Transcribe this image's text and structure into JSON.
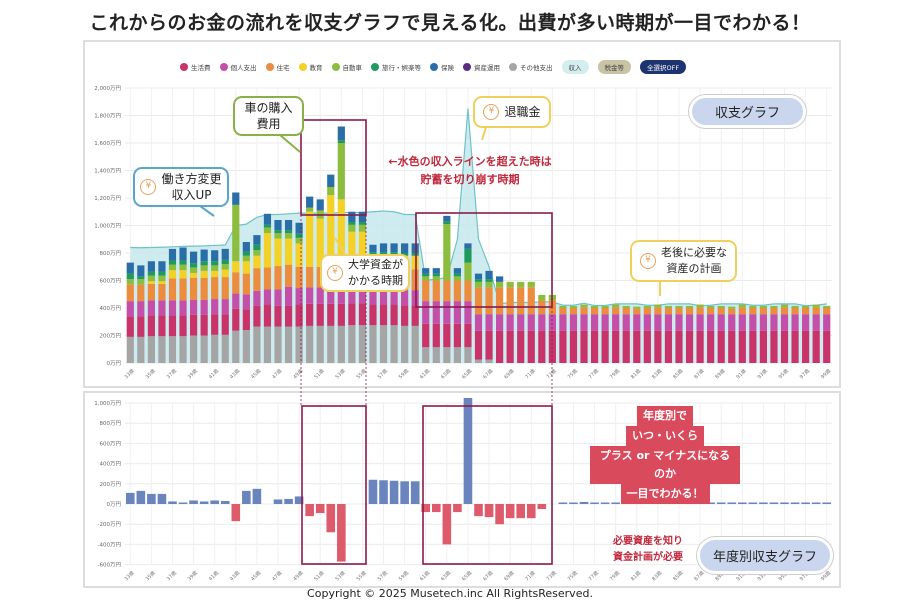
{
  "title": "これからのお金の流れを収支グラフで見える化。出費が多い時期が一目でわかる！",
  "footer": "Copyright © 2025 Musetech.inc All RightsReserved.",
  "legend": {
    "items": [
      {
        "label": "生活費",
        "color": "#c8336a"
      },
      {
        "label": "個人支出",
        "color": "#c44fa8"
      },
      {
        "label": "住宅",
        "color": "#ec8c3e"
      },
      {
        "label": "教育",
        "color": "#f4d126"
      },
      {
        "label": "自動車",
        "color": "#8dbd3f"
      },
      {
        "label": "旅行・娯楽等",
        "color": "#1f9a5c"
      },
      {
        "label": "保険",
        "color": "#2a6ea8"
      },
      {
        "label": "資産運用",
        "color": "#5b2d7e"
      },
      {
        "label": "その他支出",
        "color": "#a5a5a5"
      }
    ],
    "buttons": [
      {
        "label": "収入",
        "bg": "#d4eef0",
        "fg": "#444"
      },
      {
        "label": "税金等",
        "bg": "#c7c3a4",
        "fg": "#444"
      },
      {
        "label": "全選択OFF",
        "bg": "#1d3470",
        "fg": "#fff"
      }
    ]
  },
  "annotations": {
    "work_change": [
      "働き方変更",
      "収入UP"
    ],
    "car": [
      "車の購入",
      "費用"
    ],
    "college": [
      "大学資金が",
      "かかる時期"
    ],
    "retirement": [
      "退職金"
    ],
    "savings_note": [
      "←水色の収入ラインを超えた時は",
      "貯蓄を切り崩す時期"
    ],
    "old_age": [
      "老後に必要な",
      "資産の計画"
    ],
    "top_pill": "収支グラフ",
    "bottom_pill": "年度別収支グラフ",
    "bottom_callout": [
      "年度別で",
      "いつ・いくら",
      "プラス or マイナスになるのか",
      "一目でわかる！"
    ],
    "asset_note": [
      "必要資産を知り",
      "資金計画が必要"
    ],
    "yen_icon": "¥"
  },
  "chart_data": [
    {
      "type": "bar",
      "stacked": true,
      "title": "収支グラフ",
      "x_start_age": 33,
      "x_end_age": 99,
      "x_tick_labels": [
        "33歳",
        "35歳",
        "37歳",
        "39歳",
        "41歳",
        "43歳",
        "45歳",
        "47歳",
        "49歳",
        "51歳",
        "53歳",
        "55歳",
        "57歳",
        "59歳",
        "61歳",
        "63歳",
        "65歳",
        "67歳",
        "69歳",
        "71歳",
        "73歳",
        "75歳",
        "77歳",
        "79歳",
        "81歳",
        "83歳",
        "85歳",
        "87歳",
        "89歳",
        "91歳",
        "93歳",
        "95歳",
        "97歳",
        "99歳"
      ],
      "y_tick_labels": [
        "0万円",
        "200万円",
        "400万円",
        "600万円",
        "800万円",
        "1,000万円",
        "1,200万円",
        "1,400万円",
        "1,600万円",
        "1,800万円",
        "2,000万円"
      ],
      "ylim": [
        0,
        2000
      ],
      "grid": true,
      "legend": "top",
      "series": [
        {
          "name": "その他支出",
          "color": "#a5a5a5",
          "values": [
            190,
            190,
            195,
            195,
            195,
            195,
            200,
            200,
            205,
            205,
            235,
            240,
            265,
            265,
            265,
            265,
            265,
            270,
            270,
            270,
            270,
            275,
            275,
            275,
            275,
            275,
            270,
            270,
            115,
            115,
            115,
            115,
            115,
            25,
            25,
            0,
            0,
            0,
            0,
            0,
            0,
            0,
            0,
            0,
            0,
            0,
            0,
            0,
            0,
            0,
            0,
            0,
            0,
            0,
            0,
            0,
            0,
            0,
            0,
            0,
            0,
            0,
            0,
            0,
            0,
            0,
            0
          ]
        },
        {
          "name": "生活費",
          "color": "#c8336a",
          "values": [
            150,
            150,
            150,
            150,
            150,
            150,
            150,
            150,
            150,
            150,
            160,
            150,
            150,
            160,
            150,
            150,
            160,
            160,
            160,
            160,
            160,
            160,
            160,
            150,
            150,
            150,
            150,
            150,
            170,
            170,
            170,
            170,
            170,
            210,
            210,
            235,
            235,
            235,
            235,
            235,
            235,
            235,
            235,
            235,
            235,
            235,
            235,
            235,
            235,
            235,
            235,
            235,
            235,
            235,
            235,
            235,
            235,
            235,
            235,
            235,
            235,
            235,
            235,
            235,
            235,
            235,
            235
          ]
        },
        {
          "name": "個人支出",
          "color": "#c44fa8",
          "values": [
            110,
            110,
            110,
            110,
            110,
            110,
            110,
            110,
            110,
            110,
            110,
            110,
            110,
            110,
            120,
            140,
            120,
            120,
            120,
            120,
            120,
            120,
            120,
            110,
            110,
            110,
            110,
            110,
            165,
            165,
            165,
            165,
            165,
            120,
            120,
            120,
            120,
            120,
            120,
            120,
            120,
            120,
            120,
            120,
            120,
            120,
            120,
            120,
            120,
            120,
            120,
            120,
            120,
            120,
            120,
            120,
            120,
            120,
            120,
            120,
            120,
            120,
            120,
            120,
            120,
            120,
            120
          ]
        },
        {
          "name": "住宅",
          "color": "#ec8c3e",
          "values": [
            120,
            120,
            120,
            120,
            160,
            160,
            160,
            160,
            160,
            160,
            155,
            150,
            165,
            160,
            170,
            160,
            155,
            150,
            150,
            150,
            150,
            150,
            150,
            150,
            150,
            150,
            150,
            150,
            150,
            150,
            150,
            150,
            150,
            195,
            195,
            195,
            195,
            195,
            195,
            100,
            100,
            45,
            45,
            50,
            45,
            45,
            50,
            45,
            40,
            45,
            50,
            45,
            45,
            45,
            50,
            45,
            45,
            40,
            50,
            45,
            45,
            45,
            50,
            45,
            45,
            50,
            45
          ]
        },
        {
          "name": "教育",
          "color": "#f4d126",
          "values": [
            0,
            0,
            20,
            20,
            60,
            60,
            35,
            50,
            45,
            55,
            80,
            90,
            90,
            250,
            200,
            190,
            170,
            400,
            350,
            520,
            490,
            250,
            250,
            100,
            100,
            100,
            100,
            100,
            0,
            0,
            0,
            0,
            0,
            0,
            0,
            0,
            0,
            0,
            0,
            0,
            0,
            0,
            0,
            0,
            0,
            0,
            0,
            0,
            0,
            0,
            0,
            0,
            0,
            0,
            0,
            0,
            0,
            0,
            0,
            0,
            0,
            0,
            0,
            0,
            0,
            0,
            0
          ]
        },
        {
          "name": "自動車",
          "color": "#8dbd3f",
          "values": [
            40,
            40,
            40,
            40,
            40,
            40,
            40,
            40,
            40,
            40,
            410,
            40,
            40,
            40,
            40,
            40,
            40,
            30,
            60,
            60,
            410,
            50,
            50,
            0,
            0,
            0,
            0,
            0,
            30,
            30,
            410,
            30,
            130,
            40,
            40,
            40,
            40,
            40,
            40,
            40,
            40,
            15,
            15,
            20,
            15,
            15,
            20,
            15,
            15,
            15,
            20,
            15,
            15,
            15,
            20,
            15,
            15,
            15,
            20,
            15,
            15,
            15,
            20,
            15,
            15,
            20,
            15
          ]
        },
        {
          "name": "旅行・娯楽等",
          "color": "#1f9a5c",
          "values": [
            40,
            20,
            30,
            30,
            30,
            30,
            30,
            30,
            30,
            30,
            0,
            30,
            40,
            20,
            20,
            20,
            30,
            0,
            0,
            0,
            20,
            20,
            20,
            20,
            20,
            20,
            20,
            20,
            20,
            20,
            20,
            20,
            100,
            20,
            20,
            0,
            0,
            0,
            0,
            0,
            0,
            0,
            0,
            0,
            0,
            0,
            0,
            0,
            0,
            0,
            0,
            0,
            0,
            0,
            0,
            0,
            0,
            0,
            0,
            0,
            0,
            0,
            0,
            0,
            0,
            0,
            0
          ]
        },
        {
          "name": "保険",
          "color": "#2a6ea8",
          "values": [
            80,
            80,
            75,
            75,
            85,
            95,
            85,
            85,
            80,
            80,
            90,
            70,
            70,
            80,
            75,
            75,
            80,
            80,
            80,
            90,
            100,
            75,
            75,
            55,
            65,
            65,
            70,
            70,
            40,
            40,
            40,
            40,
            40,
            40,
            60,
            40,
            0,
            0,
            0,
            0,
            0,
            0,
            0,
            0,
            0,
            0,
            0,
            0,
            0,
            0,
            0,
            0,
            0,
            0,
            0,
            0,
            0,
            0,
            0,
            0,
            0,
            0,
            0,
            0,
            0,
            0,
            0
          ]
        },
        {
          "name": "資産運用",
          "color": "#5b2d7e",
          "values": [
            0,
            0,
            0,
            0,
            0,
            0,
            0,
            0,
            0,
            0,
            0,
            0,
            0,
            0,
            0,
            0,
            0,
            0,
            0,
            0,
            0,
            0,
            0,
            0,
            0,
            0,
            0,
            0,
            0,
            0,
            0,
            0,
            0,
            0,
            0,
            0,
            0,
            0,
            0,
            0,
            0,
            0,
            0,
            0,
            0,
            0,
            0,
            0,
            0,
            0,
            0,
            0,
            0,
            0,
            0,
            0,
            0,
            0,
            0,
            0,
            0,
            0,
            0,
            0,
            0,
            0,
            0
          ]
        }
      ],
      "income": {
        "name": "収入",
        "color": "#6fc2c8",
        "fill": "#c5e9ec",
        "values": [
          840,
          838,
          840,
          842,
          845,
          848,
          850,
          852,
          855,
          858,
          1000,
          1010,
          1060,
          1080,
          1080,
          1085,
          1090,
          1090,
          1090,
          1090,
          1095,
          1095,
          1095,
          1100,
          1105,
          1100,
          1080,
          1080,
          600,
          610,
          620,
          900,
          1850,
          900,
          700,
          430,
          440,
          440,
          440,
          445,
          445,
          420,
          420,
          435,
          418,
          418,
          430,
          430,
          430,
          420,
          420,
          430,
          430,
          430,
          417,
          420,
          430,
          430,
          430,
          420,
          420,
          430,
          430,
          430,
          417,
          420,
          430
        ]
      }
    },
    {
      "type": "bar",
      "title": "年度別収支グラフ",
      "x_start_age": 33,
      "x_end_age": 99,
      "x_tick_labels": [
        "33歳",
        "35歳",
        "37歳",
        "39歳",
        "41歳",
        "43歳",
        "45歳",
        "47歳",
        "49歳",
        "51歳",
        "53歳",
        "55歳",
        "57歳",
        "59歳",
        "61歳",
        "63歳",
        "65歳",
        "67歳",
        "69歳",
        "71歳",
        "73歳",
        "75歳",
        "77歳",
        "79歳",
        "81歳",
        "83歳",
        "85歳",
        "87歳",
        "89歳",
        "91歳",
        "93歳",
        "95歳",
        "97歳",
        "99歳"
      ],
      "y_tick_labels": [
        "-600万円",
        "-400万円",
        "-200万円",
        "0万円",
        "200万円",
        "400万円",
        "600万円",
        "800万円",
        "1,000万円"
      ],
      "ylim": [
        -600,
        1000
      ],
      "grid": true,
      "positive_color": "#6a85bd",
      "negative_color": "#de5b6b",
      "values": [
        110,
        130,
        100,
        100,
        25,
        10,
        35,
        25,
        35,
        30,
        -170,
        130,
        150,
        0,
        45,
        50,
        75,
        -120,
        -90,
        -280,
        -570,
        0,
        0,
        240,
        235,
        230,
        225,
        225,
        -80,
        -80,
        -400,
        -80,
        1050,
        -120,
        -130,
        -200,
        -140,
        -140,
        -140,
        -50,
        0,
        5,
        5,
        20,
        3,
        3,
        15,
        15,
        15,
        5,
        5,
        15,
        15,
        15,
        2,
        5,
        15,
        15,
        15,
        5,
        5,
        15,
        15,
        15,
        2,
        5,
        15
      ]
    }
  ]
}
